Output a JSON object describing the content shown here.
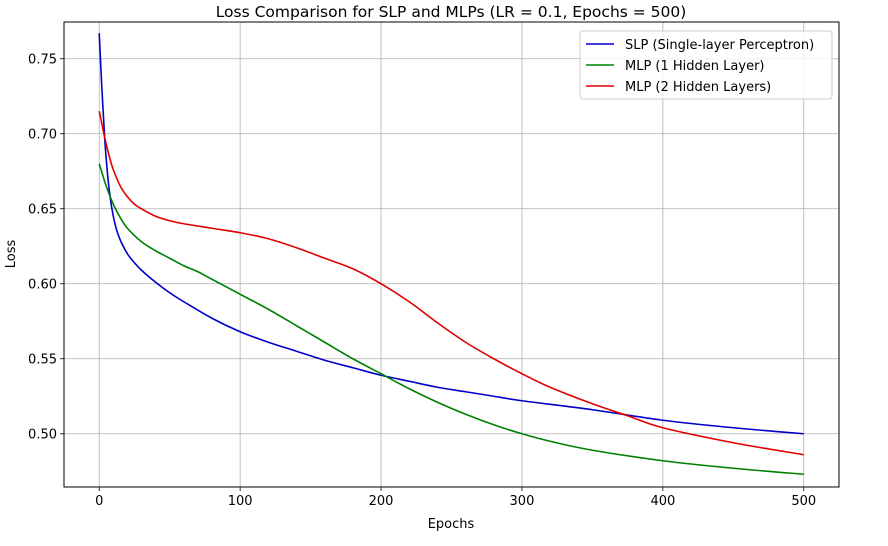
{
  "chart_data": {
    "type": "line",
    "title": "Loss Comparison for SLP and MLPs (LR = 0.1, Epochs = 500)",
    "xlabel": "Epochs",
    "ylabel": "Loss",
    "xlim": [
      -25,
      525
    ],
    "ylim": [
      0.4645,
      0.7745
    ],
    "xticks": [
      0,
      100,
      200,
      300,
      400,
      500
    ],
    "yticks": [
      0.5,
      0.55,
      0.6,
      0.65,
      0.7,
      0.75
    ],
    "xtick_labels": [
      "0",
      "100",
      "200",
      "300",
      "400",
      "500"
    ],
    "ytick_labels": [
      "0.50",
      "0.55",
      "0.60",
      "0.65",
      "0.70",
      "0.75"
    ],
    "grid": true,
    "legend_position": "top-right",
    "series": [
      {
        "name": "SLP (Single-layer Perceptron)",
        "color": "#0000cc",
        "x": [
          0,
          2,
          4,
          6,
          8,
          10,
          12,
          15,
          20,
          25,
          30,
          40,
          50,
          60,
          80,
          100,
          120,
          140,
          160,
          180,
          200,
          220,
          240,
          260,
          280,
          300,
          350,
          400,
          450,
          500
        ],
        "values": [
          0.767,
          0.728,
          0.695,
          0.672,
          0.656,
          0.645,
          0.637,
          0.629,
          0.62,
          0.614,
          0.609,
          0.601,
          0.594,
          0.588,
          0.577,
          0.568,
          0.561,
          0.555,
          0.549,
          0.544,
          0.539,
          0.535,
          0.531,
          0.528,
          0.525,
          0.522,
          0.516,
          0.509,
          0.504,
          0.5
        ]
      },
      {
        "name": "MLP (1 Hidden Layer)",
        "color": "#008000",
        "x": [
          0,
          5,
          10,
          15,
          20,
          30,
          40,
          50,
          60,
          70,
          80,
          100,
          120,
          140,
          160,
          180,
          200,
          220,
          240,
          260,
          280,
          300,
          320,
          350,
          400,
          450,
          500
        ],
        "values": [
          0.68,
          0.665,
          0.653,
          0.644,
          0.637,
          0.628,
          0.622,
          0.617,
          0.612,
          0.608,
          0.603,
          0.593,
          0.583,
          0.572,
          0.561,
          0.55,
          0.54,
          0.53,
          0.521,
          0.513,
          0.506,
          0.5,
          0.495,
          0.489,
          0.482,
          0.477,
          0.473
        ]
      },
      {
        "name": "MLP (2 Hidden Layers)",
        "color": "#e00000",
        "x": [
          0,
          2,
          4,
          6,
          8,
          10,
          15,
          20,
          25,
          30,
          40,
          50,
          60,
          80,
          100,
          120,
          140,
          160,
          180,
          200,
          220,
          240,
          260,
          280,
          300,
          320,
          350,
          375,
          400,
          450,
          500
        ],
        "values": [
          0.715,
          0.706,
          0.697,
          0.689,
          0.682,
          0.676,
          0.665,
          0.658,
          0.653,
          0.65,
          0.645,
          0.642,
          0.64,
          0.637,
          0.634,
          0.63,
          0.624,
          0.617,
          0.61,
          0.6,
          0.588,
          0.574,
          0.561,
          0.55,
          0.54,
          0.531,
          0.52,
          0.512,
          0.504,
          0.494,
          0.486
        ]
      }
    ]
  }
}
